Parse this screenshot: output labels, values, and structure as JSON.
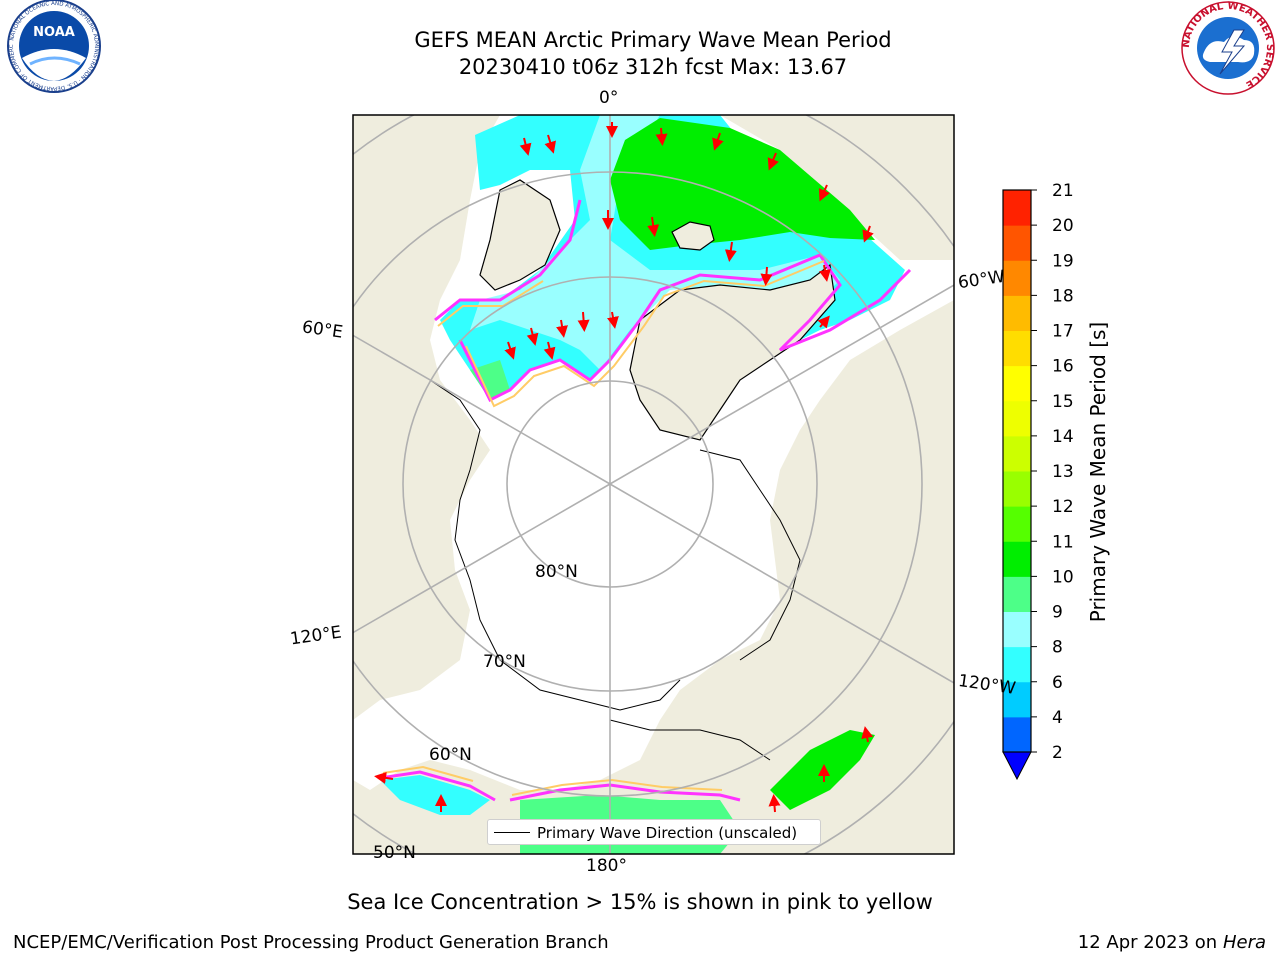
{
  "header": {
    "title_line1": "GEFS MEAN Arctic Primary Wave Mean Period",
    "title_line2": "20230410 t06z 312h fcst   Max: 13.67"
  },
  "logos": {
    "noaa_text": "NOAA",
    "noaa_ring_text": "NATIONAL OCEANIC AND ATMOSPHERIC ADMINISTRATION · U.S. DEPARTMENT OF COMMERCE",
    "nws_ring_text": "NATIONAL WEATHER SERVICE"
  },
  "map": {
    "projection": "north-polar-stereographic",
    "center_longitude_deg": 0,
    "longitude_labels": {
      "top": "0°",
      "bottom": "180°",
      "upper_left": "60°E",
      "lower_left": "120°E",
      "upper_right": "60°W",
      "lower_right": "120°W"
    },
    "latitude_labels": {
      "lat80": "80°N",
      "lat70": "70°N",
      "lat60": "60°N",
      "lat50": "50°N"
    },
    "legend_label": "Primary Wave Direction (unscaled)",
    "colors": {
      "land": "#efedde",
      "ocean_no_data": "#ffffff",
      "graticule": "#b0b0b0",
      "coastline": "#000000",
      "sea_ice_edge": [
        "#ff33ff",
        "#ff99cc",
        "#ffcc66"
      ],
      "arrow": "#ff0000"
    }
  },
  "colorbar": {
    "label": "Primary Wave Mean Period [s]",
    "tick_labels": [
      "2",
      "4",
      "6",
      "8",
      "9",
      "10",
      "11",
      "12",
      "13",
      "14",
      "15",
      "16",
      "17",
      "18",
      "19",
      "20",
      "21"
    ],
    "colors": [
      "#0066ff",
      "#00ccff",
      "#33ffff",
      "#99ffff",
      "#4dff88",
      "#00ee00",
      "#55ff00",
      "#99ff00",
      "#ccff00",
      "#eeff00",
      "#ffff00",
      "#ffdd00",
      "#ffbb00",
      "#ff8800",
      "#ff5500",
      "#ff2200"
    ],
    "under_color": "#0000ff",
    "range": [
      2,
      21
    ]
  },
  "subnote": "Sea Ice Concentration > 15% is shown in pink to yellow",
  "footer": {
    "left": "NCEP/EMC/Verification Post Processing Product Generation Branch",
    "right_prefix": "12 Apr 2023 on ",
    "right_machine": "Hera"
  }
}
